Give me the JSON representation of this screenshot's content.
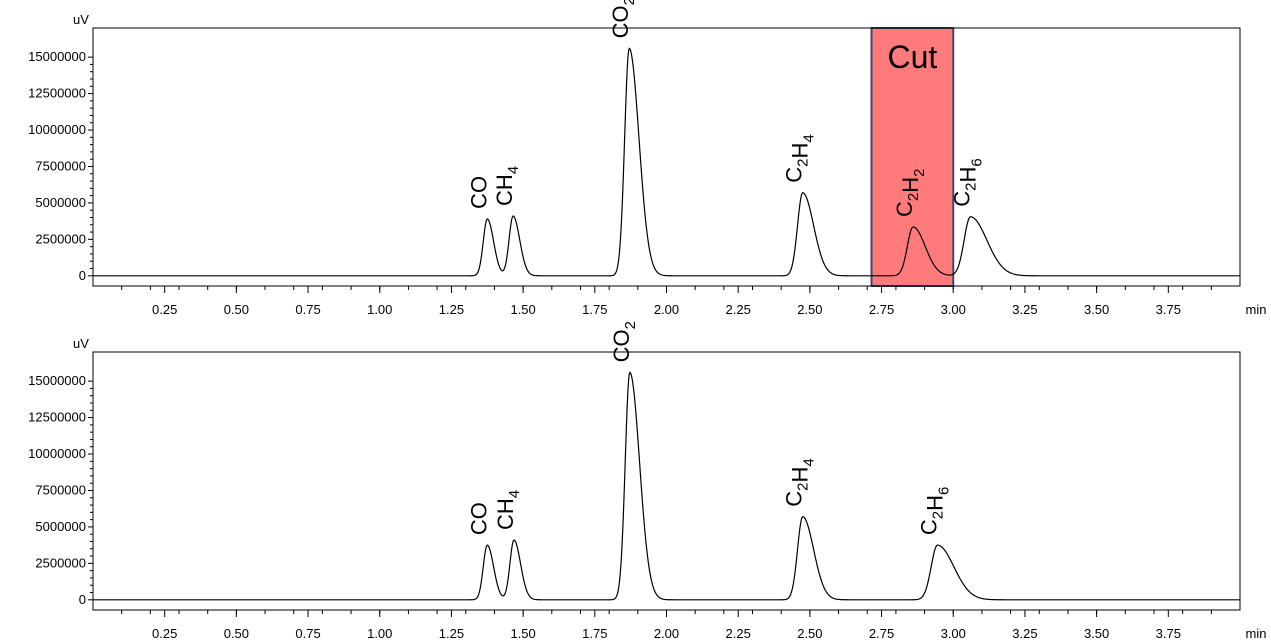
{
  "chart_data": [
    {
      "type": "line",
      "id": "chromatogram-top",
      "y_unit": "uV",
      "x_unit": "min",
      "xlim": [
        0,
        4.0
      ],
      "ylim": [
        -700000,
        17000000
      ],
      "xticks": [
        0.25,
        0.5,
        0.75,
        1.0,
        1.25,
        1.5,
        1.75,
        2.0,
        2.25,
        2.5,
        2.75,
        3.0,
        3.25,
        3.5,
        3.75
      ],
      "xtick_labels": [
        "0.25",
        "0.50",
        "0.75",
        "1.00",
        "1.25",
        "1.50",
        "1.75",
        "2.00",
        "2.25",
        "2.50",
        "2.75",
        "3.00",
        "3.25",
        "3.50",
        "3.75"
      ],
      "yticks": [
        0,
        2500000,
        5000000,
        7500000,
        10000000,
        12500000,
        15000000
      ],
      "ytick_labels": [
        "0",
        "2500000",
        "5000000",
        "7500000",
        "10000000",
        "12500000",
        "15000000"
      ],
      "peaks": [
        {
          "compound": "CO",
          "label_main": "CO",
          "label_sub": "",
          "label_rest": "",
          "time": 1.375,
          "height": 3900000,
          "width": 0.014,
          "tail": 0.008,
          "label_color": "#000000"
        },
        {
          "compound": "CH4",
          "label_main": "CH",
          "label_sub": "4",
          "label_rest": "",
          "time": 1.465,
          "height": 4100000,
          "width": 0.014,
          "tail": 0.009,
          "label_color": "#000000"
        },
        {
          "compound": "CO2",
          "label_main": "CO",
          "label_sub": "2",
          "label_rest": "",
          "time": 1.87,
          "height": 15600000,
          "width": 0.016,
          "tail": 0.018,
          "label_color": "#000000"
        },
        {
          "compound": "C2H4",
          "label_main": "C",
          "label_sub": "2",
          "label_rest": "H",
          "label_sub2": "4",
          "time": 2.475,
          "height": 5700000,
          "width": 0.018,
          "tail": 0.02,
          "label_color": "#000000"
        },
        {
          "compound": "C2H2",
          "label_main": "C",
          "label_sub": "2",
          "label_rest": "H",
          "label_sub2": "2",
          "time": 2.86,
          "height": 3350000,
          "width": 0.02,
          "tail": 0.022,
          "label_color": "#c00000"
        },
        {
          "compound": "C2H6",
          "label_main": "C",
          "label_sub": "2",
          "label_rest": "H",
          "label_sub2": "6",
          "time": 3.06,
          "height": 4050000,
          "width": 0.022,
          "tail": 0.035,
          "label_color": "#000000"
        }
      ],
      "cut_region": {
        "label": "Cut",
        "x_start": 2.715,
        "x_end": 3.0,
        "fill": "#ff7b7b",
        "border": "#3b4a6b"
      }
    },
    {
      "type": "line",
      "id": "chromatogram-bottom",
      "y_unit": "uV",
      "x_unit": "min",
      "xlim": [
        0,
        4.0
      ],
      "ylim": [
        -700000,
        17000000
      ],
      "xticks": [
        0.25,
        0.5,
        0.75,
        1.0,
        1.25,
        1.5,
        1.75,
        2.0,
        2.25,
        2.5,
        2.75,
        3.0,
        3.25,
        3.5,
        3.75
      ],
      "xtick_labels": [
        "0.25",
        "0.50",
        "0.75",
        "1.00",
        "1.25",
        "1.50",
        "1.75",
        "2.00",
        "2.25",
        "2.50",
        "2.75",
        "3.00",
        "3.25",
        "3.50",
        "3.75"
      ],
      "yticks": [
        0,
        2500000,
        5000000,
        7500000,
        10000000,
        12500000,
        15000000
      ],
      "ytick_labels": [
        "0",
        "2500000",
        "5000000",
        "7500000",
        "10000000",
        "12500000",
        "15000000"
      ],
      "peaks": [
        {
          "compound": "CO",
          "label_main": "CO",
          "label_sub": "",
          "label_rest": "",
          "time": 1.375,
          "height": 3750000,
          "width": 0.014,
          "tail": 0.008,
          "label_color": "#000000"
        },
        {
          "compound": "CH4",
          "label_main": "CH",
          "label_sub": "4",
          "label_rest": "",
          "time": 1.468,
          "height": 4100000,
          "width": 0.014,
          "tail": 0.009,
          "label_color": "#000000"
        },
        {
          "compound": "CO2",
          "label_main": "CO",
          "label_sub": "2",
          "label_rest": "",
          "time": 1.872,
          "height": 15600000,
          "width": 0.016,
          "tail": 0.018,
          "label_color": "#000000"
        },
        {
          "compound": "C2H4",
          "label_main": "C",
          "label_sub": "2",
          "label_rest": "H",
          "label_sub2": "4",
          "time": 2.475,
          "height": 5700000,
          "width": 0.018,
          "tail": 0.02,
          "label_color": "#000000"
        },
        {
          "compound": "C2H6",
          "label_main": "C",
          "label_sub": "2",
          "label_rest": "H",
          "label_sub2": "6",
          "time": 2.945,
          "height": 3750000,
          "width": 0.022,
          "tail": 0.035,
          "label_color": "#000000"
        }
      ]
    }
  ]
}
